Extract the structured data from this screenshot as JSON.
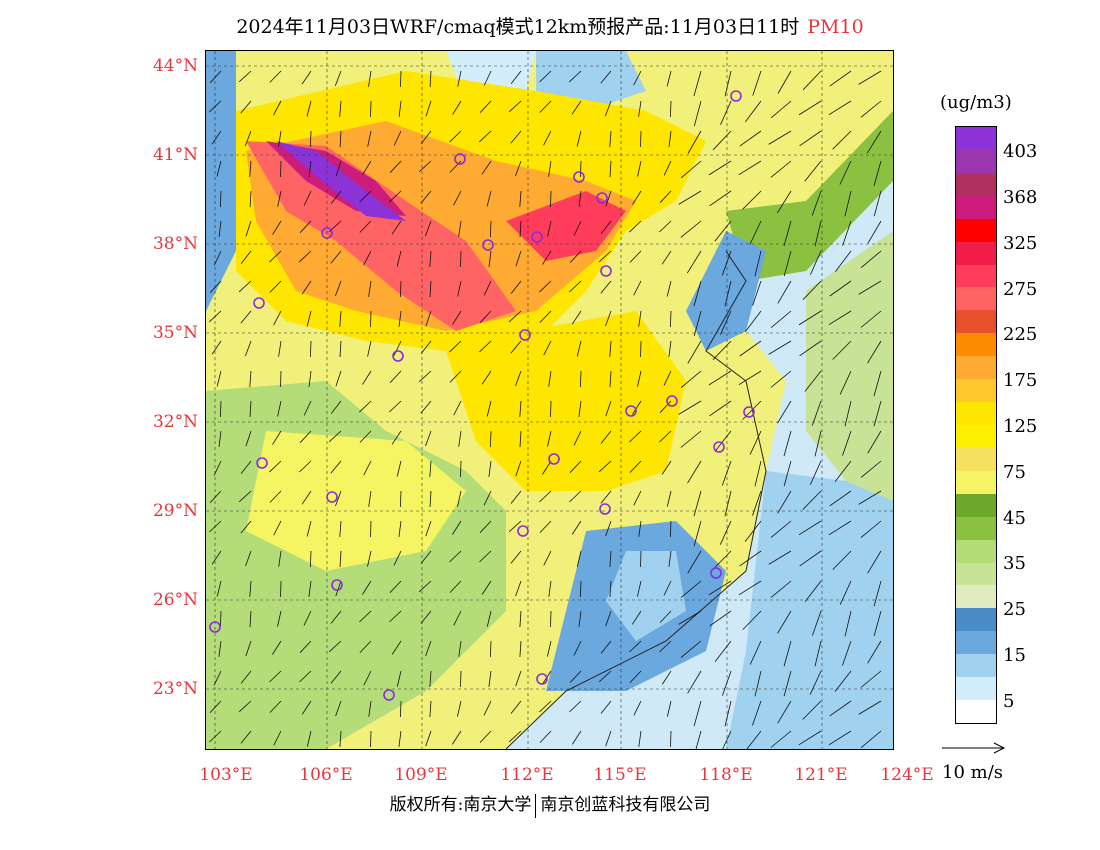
{
  "title": {
    "main": "2024年11月03日WRF/cmaq模式12km预报产品:11月03日11时",
    "variable": "PM10"
  },
  "lat_labels": [
    "44°N",
    "41°N",
    "38°N",
    "35°N",
    "32°N",
    "29°N",
    "26°N",
    "23°N"
  ],
  "lon_labels": [
    "103°E",
    "106°E",
    "109°E",
    "112°E",
    "115°E",
    "118°E",
    "121°E",
    "124°E"
  ],
  "colorbar": {
    "unit": "(ug/m3)",
    "labels": [
      "403",
      "368",
      "325",
      "275",
      "225",
      "175",
      "125",
      "75",
      "45",
      "35",
      "25",
      "15",
      "5"
    ],
    "colors": [
      "#8b33d6",
      "#9c35b0",
      "#b0305e",
      "#cc1c7c",
      "#ff0000",
      "#f01c4a",
      "#ff3c5a",
      "#ff6464",
      "#e8502c",
      "#ff8c00",
      "#ffaa32",
      "#ffc82c",
      "#ffe600",
      "#fff000",
      "#f5e060",
      "#f5f564",
      "#6ea82a",
      "#8cc040",
      "#b4dc78",
      "#c8e296",
      "#e0ecc0",
      "#4b8cc8",
      "#6aa8de",
      "#a0d2f0",
      "#d2eefa",
      "#ffffff"
    ]
  },
  "wind_reference": "10 m/s",
  "footer": {
    "left": "版权所有:南京大学",
    "right": "南京创蓝科技有限公司"
  }
}
